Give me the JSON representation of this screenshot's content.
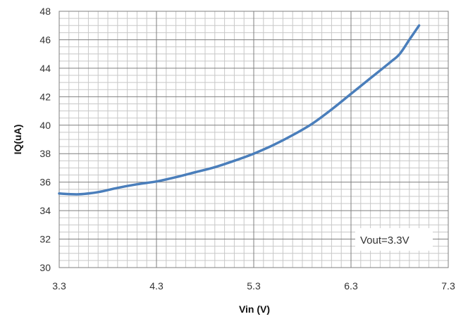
{
  "chart_data": {
    "type": "line",
    "title": "",
    "xlabel": "Vin (V)",
    "ylabel": "IQ(uA)",
    "xlim": [
      3.3,
      7.3
    ],
    "ylim": [
      30,
      48
    ],
    "x_ticks": [
      "3.3",
      "4.3",
      "5.3",
      "6.3",
      "7.3"
    ],
    "y_ticks": [
      "30",
      "32",
      "34",
      "36",
      "38",
      "40",
      "42",
      "44",
      "46",
      "48"
    ],
    "grid": true,
    "legend": "none",
    "annotation": "Vout=3.3V",
    "colors": {
      "line": "#4a7ebb",
      "major_grid": "#7f7f7f",
      "minor_grid": "#c8c8c8"
    },
    "series": [
      {
        "x": [
          3.3,
          3.5,
          3.7,
          3.9,
          4.1,
          4.3,
          4.5,
          4.7,
          4.9,
          5.1,
          5.3,
          5.5,
          5.7,
          5.9,
          6.1,
          6.3,
          6.5,
          6.7,
          6.8,
          6.9,
          7.0
        ],
        "y": [
          35.2,
          35.15,
          35.3,
          35.6,
          35.85,
          36.05,
          36.35,
          36.7,
          37.05,
          37.5,
          38.0,
          38.6,
          39.3,
          40.1,
          41.1,
          42.2,
          43.3,
          44.4,
          45.0,
          46.0,
          47.0
        ]
      }
    ]
  }
}
